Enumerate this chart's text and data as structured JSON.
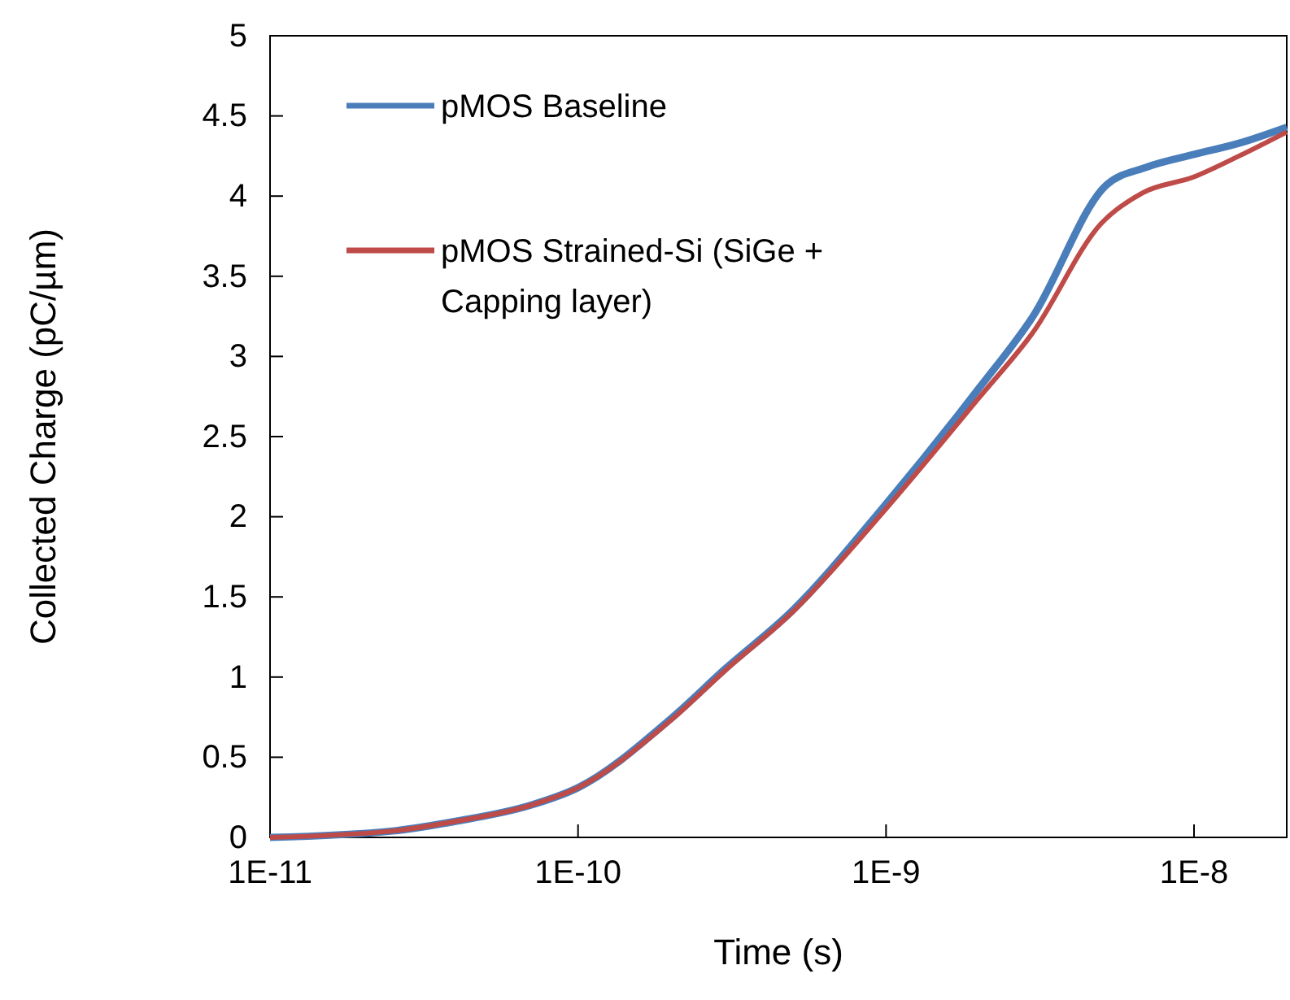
{
  "chart_data": {
    "type": "line",
    "xlabel": "Time (s)",
    "ylabel": "Collected Charge (pC/µm)",
    "log": "x",
    "xlim": [
      1e-11,
      2e-08
    ],
    "xticks": [
      {
        "value": 1e-11,
        "label": "1E-11"
      },
      {
        "value": 1e-10,
        "label": "1E-10"
      },
      {
        "value": 1e-09,
        "label": "1E-9"
      },
      {
        "value": 1e-08,
        "label": "1E-8"
      }
    ],
    "ylim": [
      0,
      5
    ],
    "yticks": [
      0,
      0.5,
      1,
      1.5,
      2,
      2.5,
      3,
      3.5,
      4,
      4.5,
      5
    ],
    "grid": false,
    "legend": "top left",
    "marker": "none",
    "line_style": "solid",
    "series": [
      {
        "name": "pMOS Baseline",
        "color": "#4a7ebb",
        "x": [
          1e-11,
          2.5e-11,
          4e-11,
          7e-11,
          1e-10,
          2e-10,
          3e-10,
          5e-10,
          1e-09,
          2e-09,
          3e-09,
          5.2e-09,
          7e-09,
          1e-08,
          1.4e-08,
          2e-08
        ],
        "values": [
          0,
          0.04,
          0.1,
          0.2,
          0.31,
          0.74,
          1.05,
          1.42,
          2.08,
          2.8,
          3.25,
          4.07,
          4.18,
          4.26,
          4.33,
          4.43
        ]
      },
      {
        "name": "pMOS Strained-Si (SiGe + Capping layer)",
        "color": "#be4b48",
        "x": [
          1e-11,
          2.5e-11,
          4e-11,
          7e-11,
          1e-10,
          2e-10,
          3e-10,
          5e-10,
          1e-09,
          2e-09,
          3e-09,
          5e-09,
          6.8e-09,
          1e-08,
          1.4e-08,
          2e-08
        ],
        "values": [
          0,
          0.04,
          0.1,
          0.2,
          0.31,
          0.73,
          1.04,
          1.41,
          2.05,
          2.74,
          3.15,
          3.83,
          4.02,
          4.12,
          4.25,
          4.4
        ]
      }
    ]
  }
}
